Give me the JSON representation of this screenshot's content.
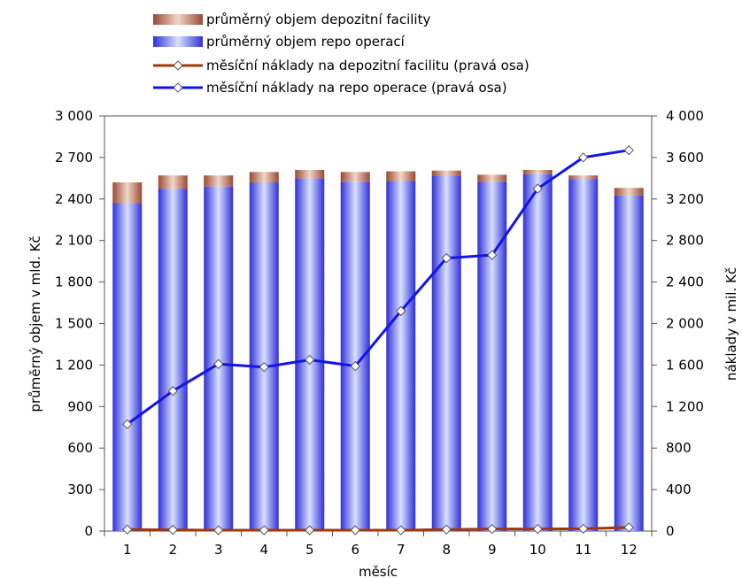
{
  "chart_data": {
    "type": "bar",
    "categories": [
      "1",
      "2",
      "3",
      "4",
      "5",
      "6",
      "7",
      "8",
      "9",
      "10",
      "11",
      "12"
    ],
    "series": [
      {
        "name": "průměrný objem repo operací",
        "kind": "stacked-bar",
        "axis": "left",
        "values": [
          2370,
          2475,
          2490,
          2520,
          2550,
          2525,
          2530,
          2565,
          2525,
          2580,
          2545,
          2425
        ]
      },
      {
        "name": "průměrný objem depozitní facility",
        "kind": "stacked-bar",
        "axis": "left",
        "values": [
          150,
          95,
          80,
          75,
          60,
          70,
          70,
          40,
          50,
          30,
          25,
          55
        ]
      },
      {
        "name": "měsíční náklady na depozitní facilitu (pravá osa)",
        "kind": "line",
        "axis": "right",
        "values": [
          15,
          12,
          8,
          8,
          8,
          8,
          8,
          15,
          20,
          20,
          22,
          35
        ]
      },
      {
        "name": "měsíční náklady na repo operace (pravá osa)",
        "kind": "line",
        "axis": "right",
        "values": [
          1030,
          1350,
          1610,
          1580,
          1650,
          1590,
          2120,
          2630,
          2660,
          3300,
          3600,
          3670
        ]
      }
    ],
    "xlabel": "měsíc",
    "ylabel": "průměrný objem v mld. Kč",
    "y2label": "náklady v mil. Kč",
    "ylim": [
      0,
      3000
    ],
    "y2lim": [
      0,
      4000
    ],
    "yticks": [
      "0",
      "300",
      "600",
      "900",
      "1 200",
      "1 500",
      "1 800",
      "2 100",
      "2 400",
      "2 700",
      "3 000"
    ],
    "y2ticks": [
      "0",
      "400",
      "800",
      "1 200",
      "1 600",
      "2 000",
      "2 400",
      "2 800",
      "3 200",
      "3 600",
      "4 000"
    ],
    "legend_position": "top",
    "colors": {
      "repo_bar": "#3a3ae0",
      "deposit_bar": "#a0523a",
      "deposit_line": "#a0380a",
      "repo_line": "#1414e6",
      "marker_fill": "#ffffff"
    }
  }
}
